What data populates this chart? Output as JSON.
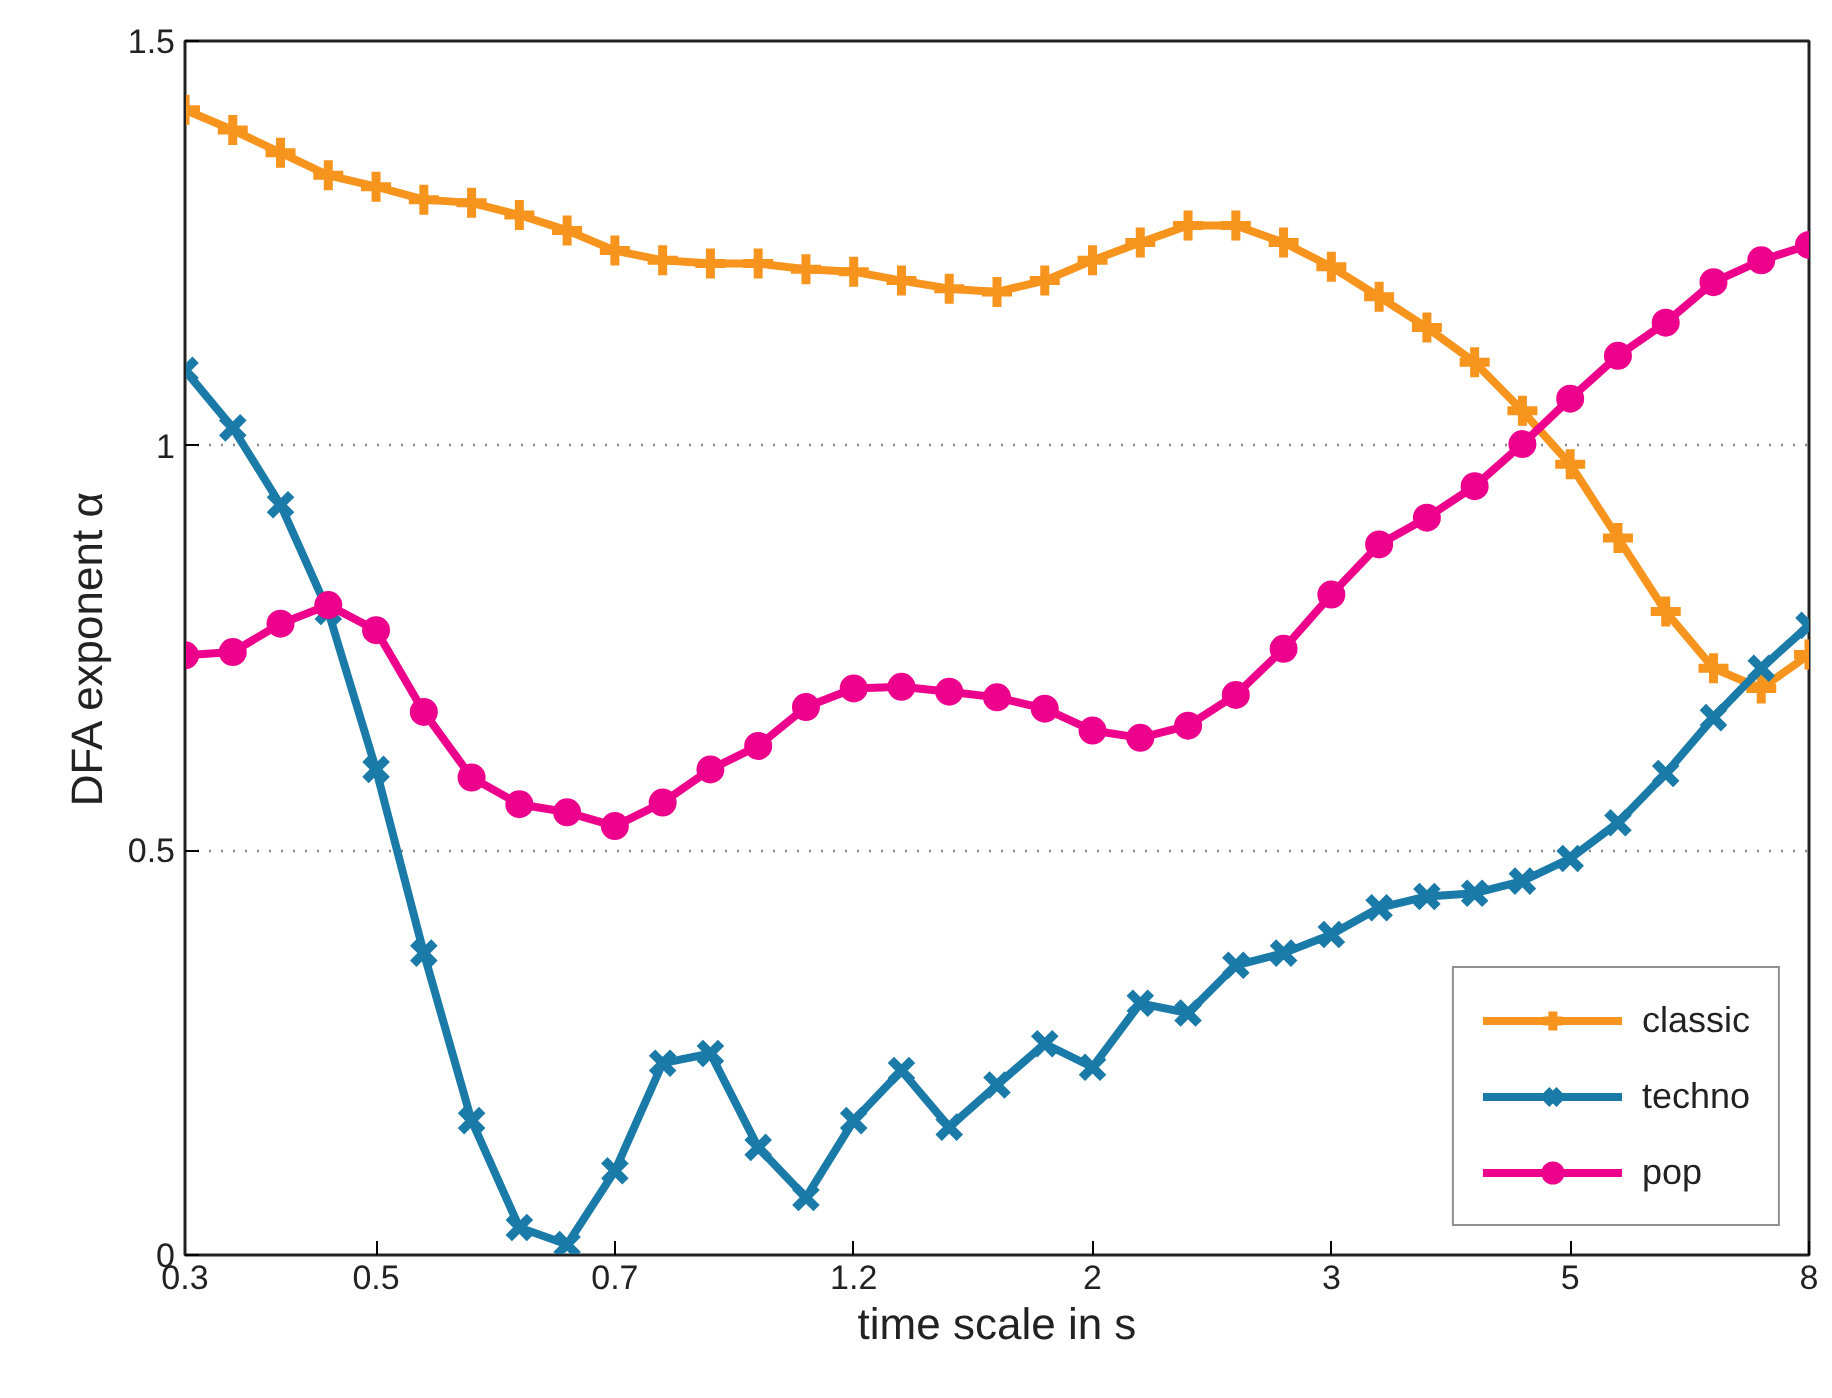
{
  "chart_data": {
    "type": "line",
    "xlabel": "time scale in s",
    "ylabel": "DFA exponent α",
    "categories": [
      "0.3",
      null,
      null,
      null,
      "0.5",
      null,
      null,
      null,
      null,
      "0.7",
      null,
      null,
      null,
      null,
      "1.2",
      null,
      null,
      null,
      null,
      "2",
      null,
      null,
      null,
      null,
      "3",
      null,
      null,
      null,
      null,
      "5",
      null,
      null,
      null,
      null,
      "8"
    ],
    "ylim": [
      0,
      1.5
    ],
    "yticks": [
      0,
      0.5,
      1,
      1.5
    ],
    "grid": "y",
    "legend": "bottom right",
    "line_style": "solid",
    "series": [
      {
        "name": "classic",
        "color": "#f7941d",
        "marker": "cross",
        "values": [
          1.415,
          1.39,
          1.362,
          1.334,
          1.32,
          1.304,
          1.3,
          1.285,
          1.266,
          1.241,
          1.229,
          1.225,
          1.225,
          1.218,
          1.215,
          1.204,
          1.194,
          1.19,
          1.204,
          1.229,
          1.251,
          1.272,
          1.272,
          1.251,
          1.221,
          1.184,
          1.146,
          1.103,
          1.043,
          0.977,
          0.886,
          0.795,
          0.725,
          0.7,
          0.742
        ]
      },
      {
        "name": "techno",
        "color": "#1a7aa8",
        "marker": "x",
        "values": [
          1.093,
          1.022,
          0.927,
          0.795,
          0.6,
          0.373,
          0.166,
          0.034,
          0.013,
          0.104,
          0.237,
          0.249,
          0.133,
          0.071,
          0.166,
          0.228,
          0.158,
          0.21,
          0.261,
          0.232,
          0.311,
          0.299,
          0.358,
          0.373,
          0.396,
          0.429,
          0.443,
          0.447,
          0.462,
          0.49,
          0.534,
          0.595,
          0.664,
          0.725,
          0.778
        ]
      },
      {
        "name": "pop",
        "color": "#ec008c",
        "marker": "circle",
        "values": [
          0.741,
          0.745,
          0.78,
          0.803,
          0.772,
          0.671,
          0.59,
          0.557,
          0.547,
          0.53,
          0.559,
          0.6,
          0.629,
          0.677,
          0.7,
          0.702,
          0.696,
          0.689,
          0.675,
          0.648,
          0.639,
          0.654,
          0.692,
          0.749,
          0.816,
          0.878,
          0.911,
          0.95,
          1.002,
          1.058,
          1.111,
          1.152,
          1.202,
          1.229,
          1.248
        ]
      }
    ]
  }
}
